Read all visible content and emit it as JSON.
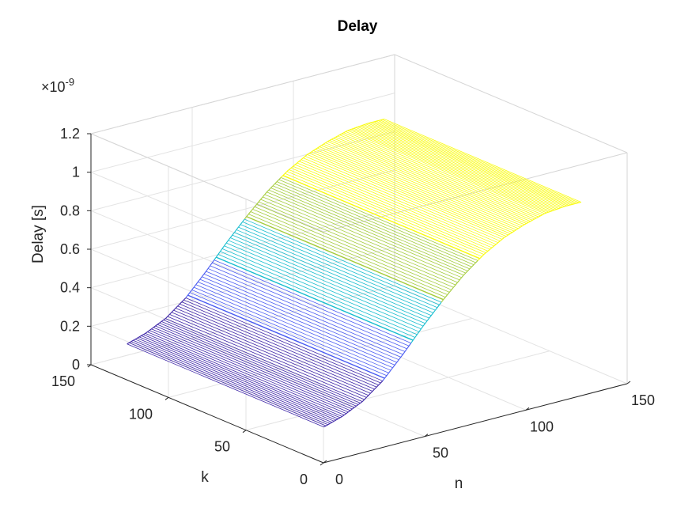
{
  "chart_data": {
    "type": "surface",
    "title": "Delay",
    "xlabel": "n",
    "ylabel": "k",
    "zlabel": "Delay [s]",
    "z_exponent_label": "×10",
    "z_exponent": "-9",
    "xlim": [
      0,
      150
    ],
    "ylim": [
      0,
      150
    ],
    "zlim": [
      0,
      1.2
    ],
    "x_ticks": [
      "0",
      "50",
      "100",
      "150"
    ],
    "y_ticks": [
      "0",
      "50",
      "100",
      "150"
    ],
    "z_ticks": [
      "0",
      "0.2",
      "0.4",
      "0.6",
      "0.8",
      "1",
      "1.2"
    ],
    "x_tick_values": [
      0,
      50,
      100,
      150
    ],
    "y_tick_values": [
      0,
      50,
      100,
      150
    ],
    "z_tick_values": [
      0,
      0.2,
      0.4,
      0.6,
      0.8,
      1.0,
      1.2
    ],
    "x_range": [
      1,
      128
    ],
    "y_range": [
      1,
      128
    ],
    "z_unit_scale": 1e-09,
    "profile_description": "Delay grows with n and saturates; independent of k",
    "profile_n": [
      1,
      10,
      20,
      30,
      40,
      50,
      60,
      70,
      80,
      90,
      100,
      110,
      120,
      128
    ],
    "profile_delay": [
      0.18,
      0.21,
      0.26,
      0.34,
      0.45,
      0.57,
      0.68,
      0.78,
      0.86,
      0.92,
      0.96,
      0.99,
      1.0,
      1.0
    ],
    "colormap": "parula",
    "colors": [
      "#3E26A8",
      "#4A5CF2",
      "#17BDCF",
      "#A5CC3C",
      "#F9FB0E"
    ],
    "grid": true
  }
}
